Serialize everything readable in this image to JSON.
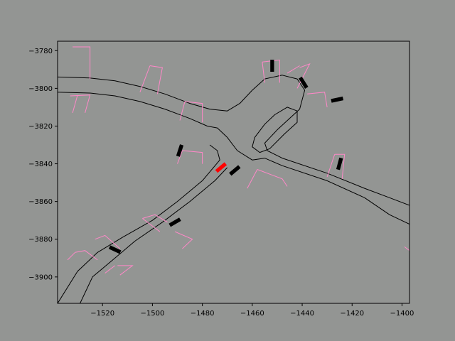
{
  "chart_data": {
    "type": "scatter",
    "title": "",
    "xlabel": "",
    "ylabel": "",
    "xlim": [
      -1538,
      -1397
    ],
    "ylim": [
      -3914,
      -3775
    ],
    "xticks": [
      -1520,
      -1500,
      -1480,
      -1460,
      -1440,
      -1420,
      -1400
    ],
    "yticks": [
      -3780,
      -3800,
      -3820,
      -3840,
      -3860,
      -3880,
      -3900
    ],
    "grid": false,
    "colors": {
      "figure_bg": "#939593",
      "axes_bg": "#939593",
      "road": "#000000",
      "parking": "#ff88c8",
      "agent": "#000000",
      "ego": "#ff0000"
    },
    "road_lines": [
      [
        [
          -1538,
          -3794
        ],
        [
          -1525,
          -3794.5
        ],
        [
          -1515,
          -3796
        ],
        [
          -1505,
          -3799
        ],
        [
          -1495,
          -3803
        ],
        [
          -1485,
          -3808
        ],
        [
          -1477,
          -3811
        ],
        [
          -1470,
          -3812
        ],
        [
          -1465,
          -3808
        ],
        [
          -1460,
          -3801
        ],
        [
          -1455,
          -3795
        ],
        [
          -1448,
          -3793
        ],
        [
          -1442,
          -3795
        ],
        [
          -1439,
          -3801
        ],
        [
          -1441,
          -3811
        ],
        [
          -1450,
          -3822
        ],
        [
          -1455,
          -3829
        ],
        [
          -1454,
          -3833
        ],
        [
          -1448,
          -3837
        ],
        [
          -1430,
          -3845
        ],
        [
          -1415,
          -3853
        ],
        [
          -1405,
          -3858
        ],
        [
          -1397,
          -3862
        ]
      ],
      [
        [
          -1538,
          -3802
        ],
        [
          -1525,
          -3802.5
        ],
        [
          -1515,
          -3804
        ],
        [
          -1505,
          -3807
        ],
        [
          -1495,
          -3811
        ],
        [
          -1485,
          -3816
        ],
        [
          -1478,
          -3820
        ],
        [
          -1474,
          -3821
        ],
        [
          -1470,
          -3826
        ],
        [
          -1466,
          -3833
        ],
        [
          -1460,
          -3838
        ],
        [
          -1455,
          -3837
        ],
        [
          -1448,
          -3841
        ],
        [
          -1430,
          -3849
        ],
        [
          -1415,
          -3858
        ],
        [
          -1405,
          -3867
        ],
        [
          -1397,
          -3872
        ]
      ],
      [
        [
          -1477,
          -3830
        ],
        [
          -1474,
          -3833
        ],
        [
          -1473,
          -3838
        ],
        [
          -1480,
          -3849
        ],
        [
          -1490,
          -3860
        ],
        [
          -1500,
          -3870
        ],
        [
          -1512,
          -3879
        ],
        [
          -1522,
          -3887
        ],
        [
          -1530,
          -3897
        ],
        [
          -1538,
          -3914
        ]
      ],
      [
        [
          -1470,
          -3842
        ],
        [
          -1475,
          -3849
        ],
        [
          -1485,
          -3860
        ],
        [
          -1496,
          -3871
        ],
        [
          -1507,
          -3881
        ],
        [
          -1515,
          -3890
        ],
        [
          -1524,
          -3900
        ],
        [
          -1529,
          -3914
        ]
      ],
      [
        [
          -1451,
          -3814
        ],
        [
          -1446,
          -3810
        ],
        [
          -1442,
          -3812
        ],
        [
          -1442,
          -3818
        ],
        [
          -1447,
          -3824
        ],
        [
          -1453,
          -3832
        ],
        [
          -1457,
          -3834
        ],
        [
          -1460,
          -3831
        ],
        [
          -1459,
          -3826
        ],
        [
          -1455,
          -3819
        ],
        [
          -1451,
          -3814
        ]
      ]
    ],
    "parking_lines": [
      [
        [
          -1532,
          -3778
        ],
        [
          -1525,
          -3778
        ],
        [
          -1525,
          -3795
        ]
      ],
      [
        [
          -1533,
          -3804
        ],
        [
          -1525,
          -3803.5
        ],
        [
          -1527,
          -3813
        ]
      ],
      [
        [
          -1530,
          -3803.5
        ],
        [
          -1532,
          -3813
        ]
      ],
      [
        [
          -1501,
          -3788
        ],
        [
          -1496,
          -3789
        ],
        [
          -1498,
          -3803
        ]
      ],
      [
        [
          -1501,
          -3788
        ],
        [
          -1505,
          -3802
        ]
      ],
      [
        [
          -1487,
          -3807
        ],
        [
          -1480,
          -3808
        ],
        [
          -1480,
          -3818
        ]
      ],
      [
        [
          -1487,
          -3807
        ],
        [
          -1489,
          -3817
        ]
      ],
      [
        [
          -1488,
          -3833
        ],
        [
          -1480,
          -3834
        ],
        [
          -1480,
          -3840
        ]
      ],
      [
        [
          -1488,
          -3833
        ],
        [
          -1490,
          -3840
        ]
      ],
      [
        [
          -1456,
          -3786
        ],
        [
          -1449,
          -3785
        ],
        [
          -1449,
          -3797
        ]
      ],
      [
        [
          -1456,
          -3786
        ],
        [
          -1455,
          -3797
        ]
      ],
      [
        [
          -1441,
          -3789
        ],
        [
          -1437,
          -3787
        ],
        [
          -1442,
          -3800
        ]
      ],
      [
        [
          -1446,
          -3792
        ],
        [
          -1441,
          -3788
        ]
      ],
      [
        [
          -1438,
          -3803
        ],
        [
          -1431,
          -3802
        ],
        [
          -1430,
          -3810
        ]
      ],
      [
        [
          -1427,
          -3835
        ],
        [
          -1423,
          -3835
        ],
        [
          -1424,
          -3848
        ]
      ],
      [
        [
          -1427,
          -3835
        ],
        [
          -1430,
          -3847
        ]
      ],
      [
        [
          -1458,
          -3843
        ],
        [
          -1448,
          -3848
        ],
        [
          -1446,
          -3852
        ]
      ],
      [
        [
          -1458,
          -3843
        ],
        [
          -1462,
          -3853
        ]
      ],
      [
        [
          -1504,
          -3869
        ],
        [
          -1499,
          -3867
        ],
        [
          -1494,
          -3871
        ]
      ],
      [
        [
          -1491,
          -3876
        ],
        [
          -1484,
          -3880
        ],
        [
          -1488,
          -3885
        ]
      ],
      [
        [
          -1504,
          -3869
        ],
        [
          -1497,
          -3876
        ]
      ],
      [
        [
          -1523,
          -3880
        ],
        [
          -1519,
          -3878
        ],
        [
          -1513,
          -3885
        ]
      ],
      [
        [
          -1514,
          -3894
        ],
        [
          -1508,
          -3894
        ],
        [
          -1513,
          -3899
        ]
      ],
      [
        [
          -1515,
          -3894
        ],
        [
          -1519,
          -3898
        ]
      ],
      [
        [
          -1531,
          -3887
        ],
        [
          -1527,
          -3886
        ],
        [
          -1522,
          -3891
        ]
      ],
      [
        [
          -1534,
          -3891
        ],
        [
          -1531,
          -3887
        ]
      ],
      [
        [
          -1399,
          -3884
        ],
        [
          -1397,
          -3886
        ]
      ]
    ],
    "agents": [
      {
        "x": -1452,
        "y": -3788,
        "length": 4.8,
        "width": 2.0,
        "heading_deg": -90,
        "color": "#000000"
      },
      {
        "x": -1439.5,
        "y": -3797,
        "length": 4.8,
        "width": 2.0,
        "heading_deg": -58,
        "color": "#000000"
      },
      {
        "x": -1426,
        "y": -3806,
        "length": 4.8,
        "width": 2.0,
        "heading_deg": 12,
        "color": "#000000"
      },
      {
        "x": -1489,
        "y": -3833,
        "length": 4.8,
        "width": 2.0,
        "heading_deg": 72,
        "color": "#000000"
      },
      {
        "x": -1425,
        "y": -3840,
        "length": 4.8,
        "width": 2.0,
        "heading_deg": 75,
        "color": "#000000"
      },
      {
        "x": -1472.5,
        "y": -3842,
        "length": 4.8,
        "width": 2.0,
        "heading_deg": 40,
        "color": "#ff0000"
      },
      {
        "x": -1467,
        "y": -3843.5,
        "length": 4.8,
        "width": 2.0,
        "heading_deg": 40,
        "color": "#000000"
      },
      {
        "x": -1491,
        "y": -3871,
        "length": 4.8,
        "width": 2.0,
        "heading_deg": 30,
        "color": "#000000"
      },
      {
        "x": -1515,
        "y": -3885.5,
        "length": 4.8,
        "width": 2.0,
        "heading_deg": -25,
        "color": "#000000"
      }
    ]
  }
}
